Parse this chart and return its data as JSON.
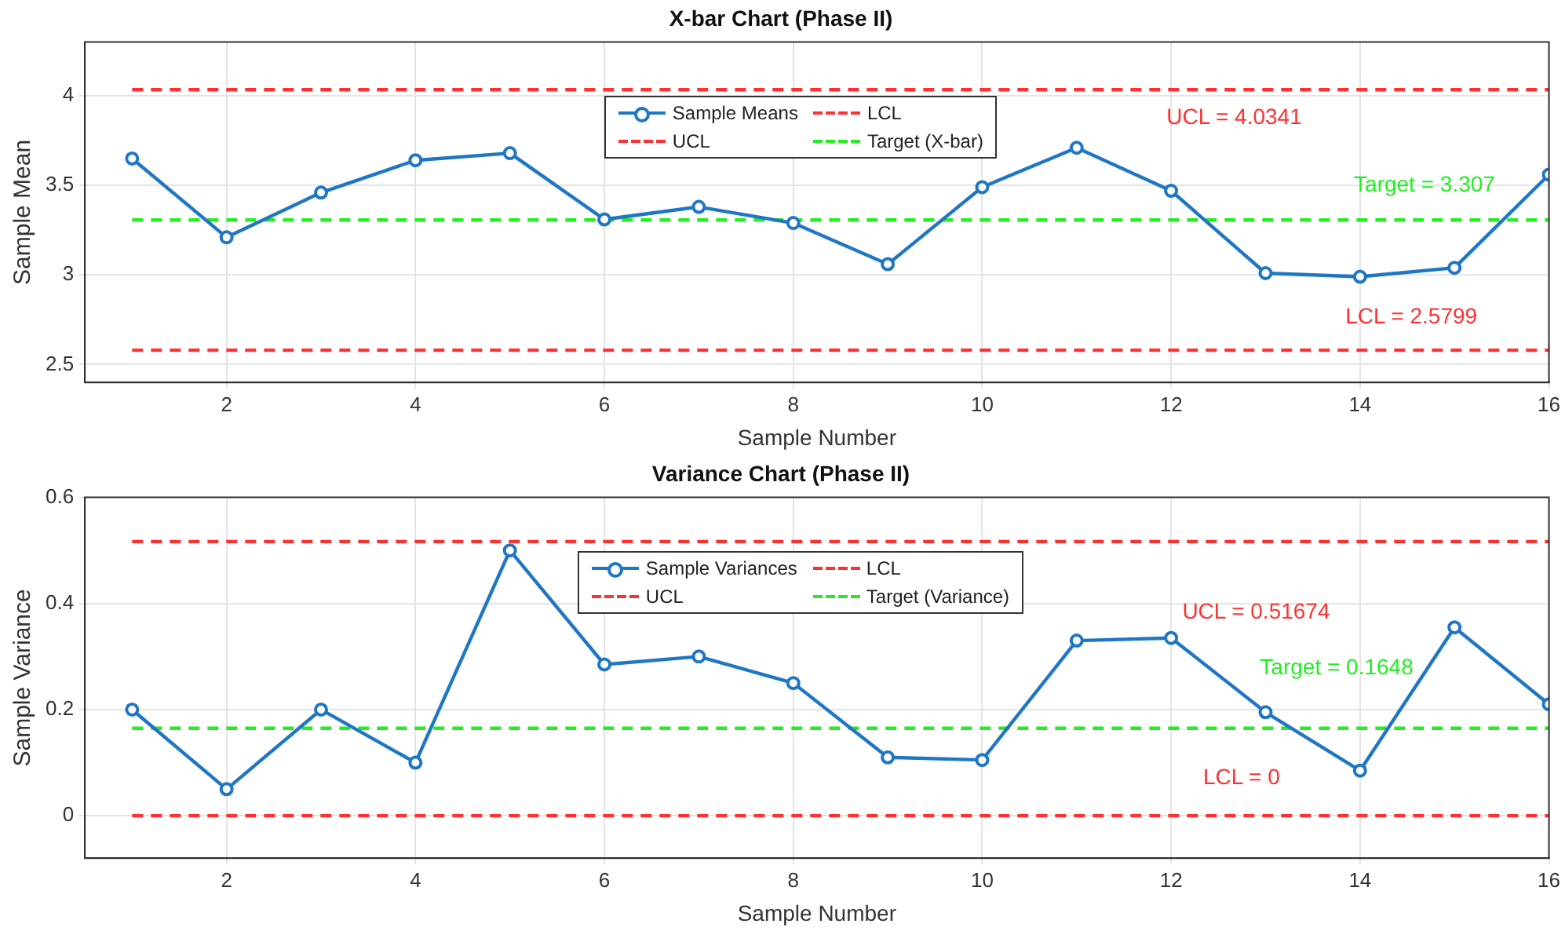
{
  "chart_data": [
    {
      "type": "line",
      "title": "X-bar Chart (Phase II)",
      "xlabel": "Sample Number",
      "ylabel": "Sample Mean",
      "x": [
        1,
        2,
        3,
        4,
        5,
        6,
        7,
        8,
        9,
        10,
        11,
        12,
        13,
        14,
        15,
        16
      ],
      "xlim": [
        0.5,
        16
      ],
      "xticks": [
        2,
        4,
        6,
        8,
        10,
        12,
        14,
        16
      ],
      "ylim": [
        2.4,
        4.3
      ],
      "yticks": [
        2.5,
        3,
        3.5,
        4
      ],
      "grid": true,
      "legend": "top",
      "series": [
        {
          "name": "Sample Means",
          "color": "#1f77c4",
          "marker": "circle",
          "line_style": "solid",
          "values": [
            3.65,
            3.21,
            3.46,
            3.64,
            3.68,
            3.31,
            3.38,
            3.29,
            3.06,
            3.49,
            3.71,
            3.47,
            3.01,
            2.99,
            3.04,
            3.56
          ]
        },
        {
          "name": "LCL",
          "color": "#ff3030",
          "marker": "none",
          "line_style": "dashed",
          "values": [
            2.5799,
            2.5799,
            2.5799,
            2.5799,
            2.5799,
            2.5799,
            2.5799,
            2.5799,
            2.5799,
            2.5799,
            2.5799,
            2.5799,
            2.5799,
            2.5799,
            2.5799,
            2.5799
          ]
        },
        {
          "name": "UCL",
          "color": "#ff3030",
          "marker": "none",
          "line_style": "dashed",
          "values": [
            4.0341,
            4.0341,
            4.0341,
            4.0341,
            4.0341,
            4.0341,
            4.0341,
            4.0341,
            4.0341,
            4.0341,
            4.0341,
            4.0341,
            4.0341,
            4.0341,
            4.0341,
            4.0341
          ]
        },
        {
          "name": "Target (X-bar)",
          "color": "#22ee22",
          "marker": "none",
          "line_style": "dashed",
          "values": [
            3.307,
            3.307,
            3.307,
            3.307,
            3.307,
            3.307,
            3.307,
            3.307,
            3.307,
            3.307,
            3.307,
            3.307,
            3.307,
            3.307,
            3.307,
            3.307
          ]
        }
      ],
      "annotations": [
        "LCL = 2.5799",
        "UCL = 4.0341",
        "Target = 3.307"
      ]
    },
    {
      "type": "line",
      "title": "Variance Chart (Phase II)",
      "xlabel": "Sample Number",
      "ylabel": "Sample Variance",
      "x": [
        1,
        2,
        3,
        4,
        5,
        6,
        7,
        8,
        9,
        10,
        11,
        12,
        13,
        14,
        15,
        16
      ],
      "xlim": [
        0.5,
        16
      ],
      "xticks": [
        2,
        4,
        6,
        8,
        10,
        12,
        14,
        16
      ],
      "ylim": [
        -0.08,
        0.6
      ],
      "yticks": [
        0,
        0.2,
        0.4,
        0.6
      ],
      "grid": true,
      "legend": "top",
      "series": [
        {
          "name": "Sample Variances",
          "color": "#1f77c4",
          "marker": "circle",
          "line_style": "solid",
          "values": [
            0.2,
            0.05,
            0.2,
            0.1,
            0.5,
            0.285,
            0.3,
            0.25,
            0.11,
            0.105,
            0.33,
            0.335,
            0.195,
            0.085,
            0.355,
            0.21
          ]
        },
        {
          "name": "LCL",
          "color": "#ff3030",
          "marker": "none",
          "line_style": "dashed",
          "values": [
            0,
            0,
            0,
            0,
            0,
            0,
            0,
            0,
            0,
            0,
            0,
            0,
            0,
            0,
            0,
            0
          ]
        },
        {
          "name": "UCL",
          "color": "#ff3030",
          "marker": "none",
          "line_style": "dashed",
          "values": [
            0.51674,
            0.51674,
            0.51674,
            0.51674,
            0.51674,
            0.51674,
            0.51674,
            0.51674,
            0.51674,
            0.51674,
            0.51674,
            0.51674,
            0.51674,
            0.51674,
            0.51674,
            0.51674
          ]
        },
        {
          "name": "Target (Variance)",
          "color": "#22ee22",
          "marker": "none",
          "line_style": "dashed",
          "values": [
            0.1648,
            0.1648,
            0.1648,
            0.1648,
            0.1648,
            0.1648,
            0.1648,
            0.1648,
            0.1648,
            0.1648,
            0.1648,
            0.1648,
            0.1648,
            0.1648,
            0.1648,
            0.1648
          ]
        }
      ],
      "annotations": [
        "LCL = 0",
        "UCL = 0.51674",
        "Target = 0.1648"
      ]
    }
  ]
}
